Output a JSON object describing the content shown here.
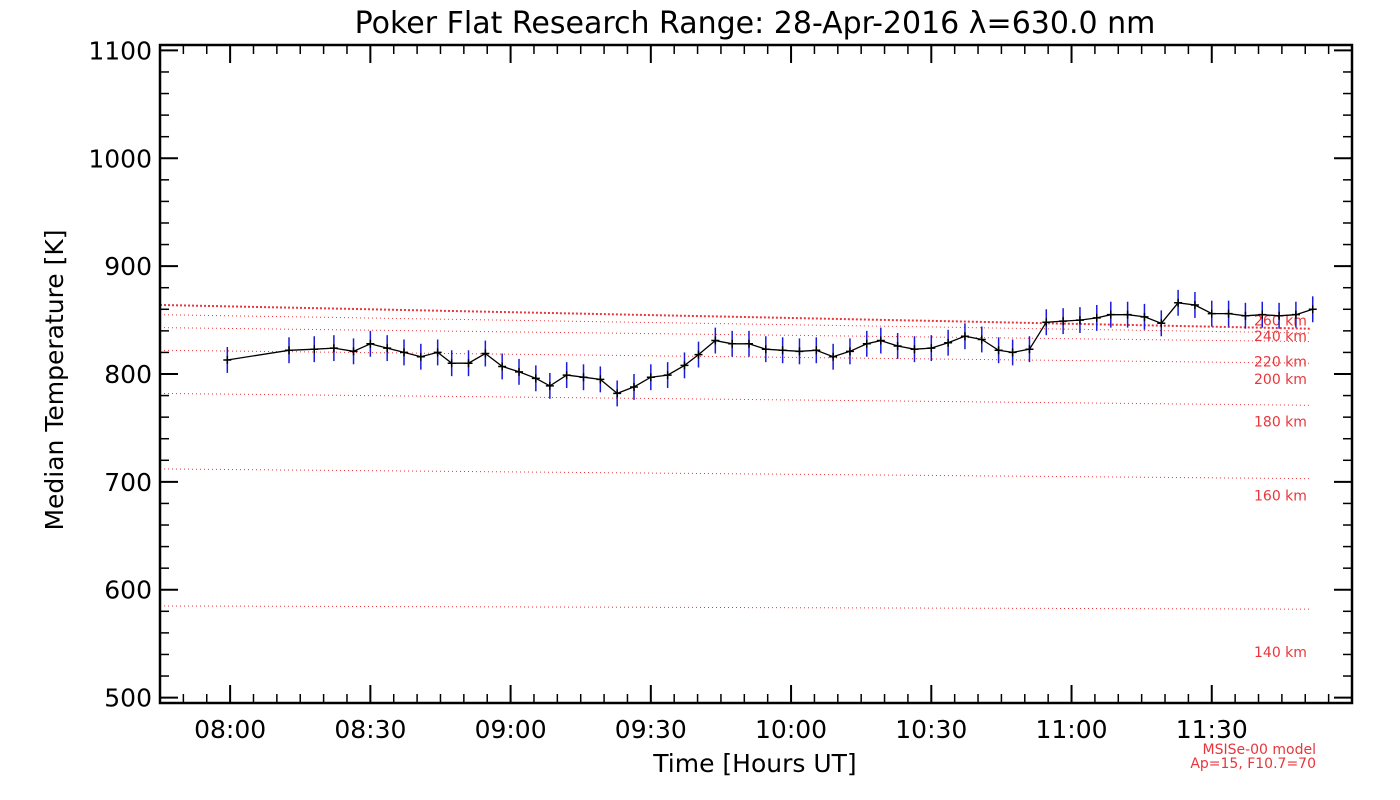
{
  "chart_data": {
    "type": "line",
    "title": "Poker Flat Research Range: 28-Apr-2016 λ=630.0 nm",
    "xlabel": "Time [Hours UT]",
    "ylabel": "Median Temperature [K]",
    "xlim": [
      7.75,
      12.0
    ],
    "ylim": [
      495,
      1105
    ],
    "x_ticks": [
      {
        "value": 8.0,
        "label": "08:00"
      },
      {
        "value": 8.5,
        "label": "08:30"
      },
      {
        "value": 9.0,
        "label": "09:00"
      },
      {
        "value": 9.5,
        "label": "09:30"
      },
      {
        "value": 10.0,
        "label": "10:00"
      },
      {
        "value": 10.5,
        "label": "10:30"
      },
      {
        "value": 11.0,
        "label": "11:00"
      },
      {
        "value": 11.5,
        "label": "11:30"
      }
    ],
    "y_ticks": [
      {
        "value": 500,
        "label": "500"
      },
      {
        "value": 600,
        "label": "600"
      },
      {
        "value": 700,
        "label": "700"
      },
      {
        "value": 800,
        "label": "800"
      },
      {
        "value": 900,
        "label": "900"
      },
      {
        "value": 1000,
        "label": "1000"
      },
      {
        "value": 1100,
        "label": "1100"
      }
    ],
    "series": [
      {
        "name": "Median Temperature",
        "color": "#000000",
        "error_color": "#1a1adc",
        "error": 12,
        "x": [
          7.99,
          8.21,
          8.3,
          8.37,
          8.44,
          8.5,
          8.56,
          8.62,
          8.68,
          8.74,
          8.79,
          8.85,
          8.91,
          8.97,
          9.03,
          9.09,
          9.14,
          9.2,
          9.26,
          9.32,
          9.38,
          9.44,
          9.5,
          9.56,
          9.62,
          9.67,
          9.73,
          9.79,
          9.85,
          9.91,
          9.97,
          10.03,
          10.09,
          10.15,
          10.21,
          10.27,
          10.32,
          10.38,
          10.44,
          10.5,
          10.56,
          10.62,
          10.68,
          10.74,
          10.79,
          10.85,
          10.91,
          10.97,
          11.03,
          11.09,
          11.14,
          11.2,
          11.26,
          11.32,
          11.38,
          11.44,
          11.5,
          11.56,
          11.62,
          11.68,
          11.74,
          11.8,
          11.86
        ],
        "values": [
          813,
          822,
          823,
          824,
          821,
          828,
          824,
          820,
          816,
          820,
          810,
          810,
          819,
          807,
          802,
          796,
          789,
          799,
          797,
          795,
          782,
          788,
          797,
          799,
          808,
          818,
          831,
          828,
          828,
          823,
          822,
          821,
          822,
          816,
          821,
          828,
          831,
          826,
          823,
          824,
          829,
          835,
          832,
          822,
          820,
          823,
          848,
          849,
          850,
          852,
          855,
          855,
          853,
          847,
          866,
          864,
          856,
          856,
          854,
          855,
          854,
          855,
          860
        ]
      }
    ],
    "model_curves": [
      {
        "label": "140 km",
        "start": 585,
        "end": 582
      },
      {
        "label": "160 km",
        "start": 712,
        "end": 703
      },
      {
        "label": "180 km",
        "start": 782,
        "end": 771
      },
      {
        "label": "200 km",
        "start": 822,
        "end": 810
      },
      {
        "label": "220 km",
        "start": 843,
        "end": 830
      },
      {
        "label": "240 km",
        "start": 855,
        "end": 838
      },
      {
        "label": "260 km",
        "start": 864,
        "end": 842
      }
    ],
    "model_curve_x": [
      7.75,
      11.85
    ],
    "model_color": "#e8363c",
    "model_note": [
      "MSISe-00 model",
      "Ap=15, F10.7=70"
    ]
  }
}
